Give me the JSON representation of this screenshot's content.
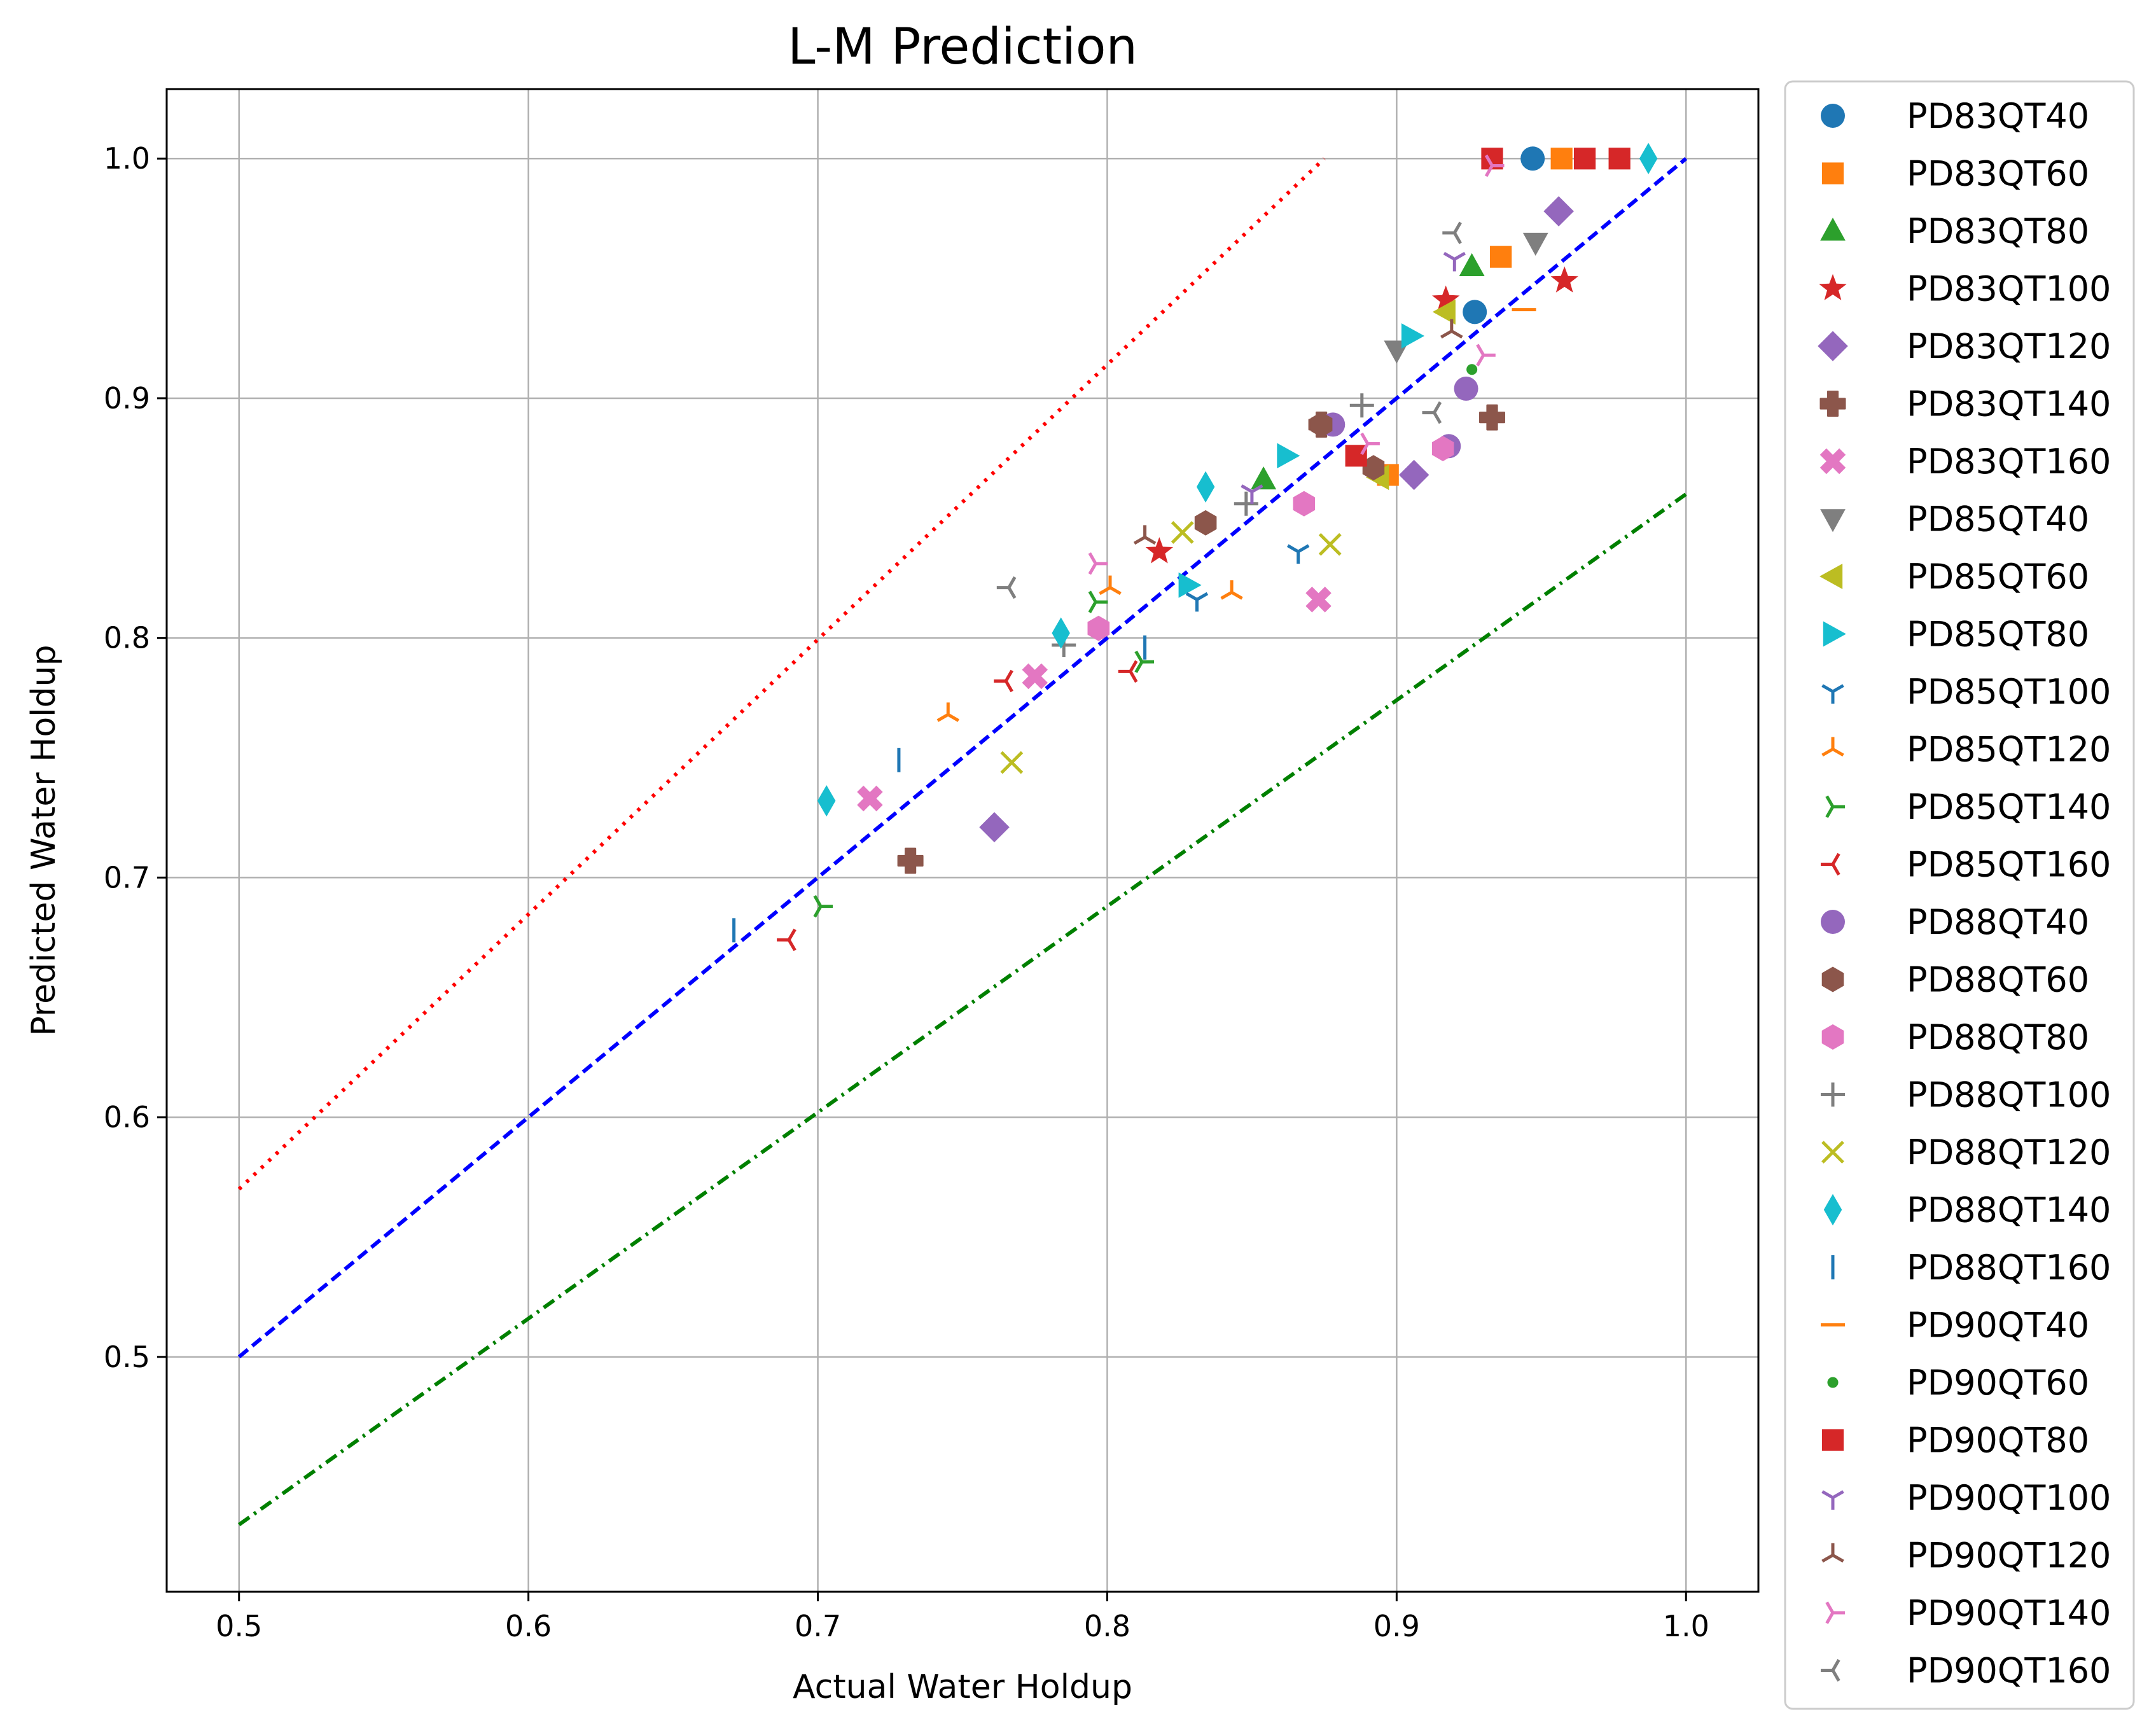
{
  "chart_data": {
    "type": "scatter",
    "title": "L-M Prediction",
    "xlabel": "Actual Water Holdup",
    "ylabel": "Predicted Water Holdup",
    "xlim": [
      0.475,
      1.025
    ],
    "ylim": [
      0.402,
      1.029
    ],
    "xticks": [
      0.5,
      0.6,
      0.7,
      0.8,
      0.9,
      1.0
    ],
    "yticks": [
      0.5,
      0.6,
      0.7,
      0.8,
      0.9,
      1.0
    ],
    "xtick_labels": [
      "0.5",
      "0.6",
      "0.7",
      "0.8",
      "0.9",
      "1.0"
    ],
    "ytick_labels": [
      "0.5",
      "0.6",
      "0.7",
      "0.8",
      "0.9",
      "1.0"
    ],
    "grid": true,
    "legend_position": "outside-right",
    "reference_lines": [
      {
        "name": "upper-bound",
        "style": "dotted",
        "color": "#ff0000",
        "x": [
          0.5,
          0.875
        ],
        "y": [
          0.57,
          1.0
        ]
      },
      {
        "name": "perfect-fit",
        "style": "dashed",
        "color": "#0000ff",
        "x": [
          0.5,
          1.0
        ],
        "y": [
          0.5,
          1.0
        ]
      },
      {
        "name": "lower-bound",
        "style": "dashdot",
        "color": "#008000",
        "x": [
          0.5,
          1.0
        ],
        "y": [
          0.43,
          0.86
        ]
      }
    ],
    "series": [
      {
        "name": "PD83QT40",
        "marker": "circle",
        "color": "#1f77b4",
        "x": [
          0.947,
          0.927
        ],
        "y": [
          1.0,
          0.936
        ]
      },
      {
        "name": "PD83QT60",
        "marker": "square",
        "color": "#ff7f0e",
        "x": [
          0.936,
          0.897,
          0.957
        ],
        "y": [
          0.959,
          0.868,
          1.0
        ]
      },
      {
        "name": "PD83QT80",
        "marker": "triangle-up",
        "color": "#2ca02c",
        "x": [
          0.926,
          0.854
        ],
        "y": [
          0.955,
          0.866
        ]
      },
      {
        "name": "PD83QT100",
        "marker": "star",
        "color": "#d62728",
        "x": [
          0.958,
          0.917,
          0.818
        ],
        "y": [
          0.949,
          0.941,
          0.836
        ]
      },
      {
        "name": "PD83QT120",
        "marker": "diamond",
        "color": "#9467bd",
        "x": [
          0.956,
          0.906,
          0.761
        ],
        "y": [
          0.978,
          0.868,
          0.721
        ]
      },
      {
        "name": "PD83QT140",
        "marker": "plus-filled",
        "color": "#8c564b",
        "x": [
          0.933,
          0.874,
          0.732
        ],
        "y": [
          0.892,
          0.889,
          0.707
        ]
      },
      {
        "name": "PD83QT160",
        "marker": "x-filled",
        "color": "#e377c2",
        "x": [
          0.873,
          0.775,
          0.718
        ],
        "y": [
          0.816,
          0.784,
          0.733
        ]
      },
      {
        "name": "PD85QT40",
        "marker": "triangle-down",
        "color": "#7f7f7f",
        "x": [
          0.948,
          0.9
        ],
        "y": [
          0.965,
          0.92
        ]
      },
      {
        "name": "PD85QT60",
        "marker": "triangle-left",
        "color": "#bcbd22",
        "x": [
          0.917,
          0.894
        ],
        "y": [
          0.936,
          0.867
        ]
      },
      {
        "name": "PD85QT80",
        "marker": "triangle-right",
        "color": "#17becf",
        "x": [
          0.905,
          0.862,
          0.828
        ],
        "y": [
          0.926,
          0.876,
          0.822
        ]
      },
      {
        "name": "PD85QT100",
        "marker": "tri-down",
        "color": "#1f77b4",
        "x": [
          0.866,
          0.831
        ],
        "y": [
          0.836,
          0.816
        ]
      },
      {
        "name": "PD85QT120",
        "marker": "tri-up",
        "color": "#ff7f0e",
        "x": [
          0.843,
          0.801,
          0.745
        ],
        "y": [
          0.819,
          0.821,
          0.768
        ]
      },
      {
        "name": "PD85QT140",
        "marker": "tri-left",
        "color": "#2ca02c",
        "x": [
          0.812,
          0.796,
          0.701
        ],
        "y": [
          0.79,
          0.815,
          0.688
        ]
      },
      {
        "name": "PD85QT160",
        "marker": "tri-right",
        "color": "#d62728",
        "x": [
          0.808,
          0.765,
          0.69
        ],
        "y": [
          0.786,
          0.782,
          0.674
        ]
      },
      {
        "name": "PD88QT40",
        "marker": "circle",
        "color": "#9467bd",
        "x": [
          0.924,
          0.918,
          0.878
        ],
        "y": [
          0.904,
          0.88,
          0.889
        ]
      },
      {
        "name": "PD88QT60",
        "marker": "hexagon",
        "color": "#8c564b",
        "x": [
          0.892,
          0.874,
          0.834
        ],
        "y": [
          0.871,
          0.889,
          0.848
        ]
      },
      {
        "name": "PD88QT80",
        "marker": "hexagon",
        "color": "#e377c2",
        "x": [
          0.916,
          0.868,
          0.797
        ],
        "y": [
          0.879,
          0.856,
          0.804
        ]
      },
      {
        "name": "PD88QT100",
        "marker": "plus",
        "color": "#7f7f7f",
        "x": [
          0.888,
          0.848,
          0.785
        ],
        "y": [
          0.897,
          0.856,
          0.797
        ]
      },
      {
        "name": "PD88QT120",
        "marker": "x",
        "color": "#bcbd22",
        "x": [
          0.877,
          0.826,
          0.767
        ],
        "y": [
          0.839,
          0.844,
          0.748
        ]
      },
      {
        "name": "PD88QT140",
        "marker": "thin-diamond",
        "color": "#17becf",
        "x": [
          0.987,
          0.834,
          0.784,
          0.703
        ],
        "y": [
          1.0,
          0.863,
          0.802,
          0.732
        ]
      },
      {
        "name": "PD88QT160",
        "marker": "vline",
        "color": "#1f77b4",
        "x": [
          0.813,
          0.728,
          0.671
        ],
        "y": [
          0.796,
          0.749,
          0.678
        ]
      },
      {
        "name": "PD90QT40",
        "marker": "hline",
        "color": "#ff7f0e",
        "x": [
          0.944
        ],
        "y": [
          0.937
        ]
      },
      {
        "name": "PD90QT60",
        "marker": "point",
        "color": "#2ca02c",
        "x": [
          0.926
        ],
        "y": [
          0.912
        ]
      },
      {
        "name": "PD90QT80",
        "marker": "square",
        "color": "#d62728",
        "x": [
          0.933,
          0.965,
          0.977,
          0.886
        ],
        "y": [
          1.0,
          1.0,
          1.0,
          0.876
        ]
      },
      {
        "name": "PD90QT100",
        "marker": "tri-down",
        "color": "#9467bd",
        "x": [
          0.92,
          0.85
        ],
        "y": [
          0.958,
          0.861
        ]
      },
      {
        "name": "PD90QT120",
        "marker": "tri-up",
        "color": "#8c564b",
        "x": [
          0.919,
          0.813
        ],
        "y": [
          0.928,
          0.842
        ]
      },
      {
        "name": "PD90QT140",
        "marker": "tri-left",
        "color": "#e377c2",
        "x": [
          0.933,
          0.93,
          0.89,
          0.796
        ],
        "y": [
          0.997,
          0.918,
          0.881,
          0.831
        ]
      },
      {
        "name": "PD90QT160",
        "marker": "tri-right",
        "color": "#7f7f7f",
        "x": [
          0.92,
          0.913,
          0.766
        ],
        "y": [
          0.969,
          0.894,
          0.821
        ]
      }
    ]
  }
}
